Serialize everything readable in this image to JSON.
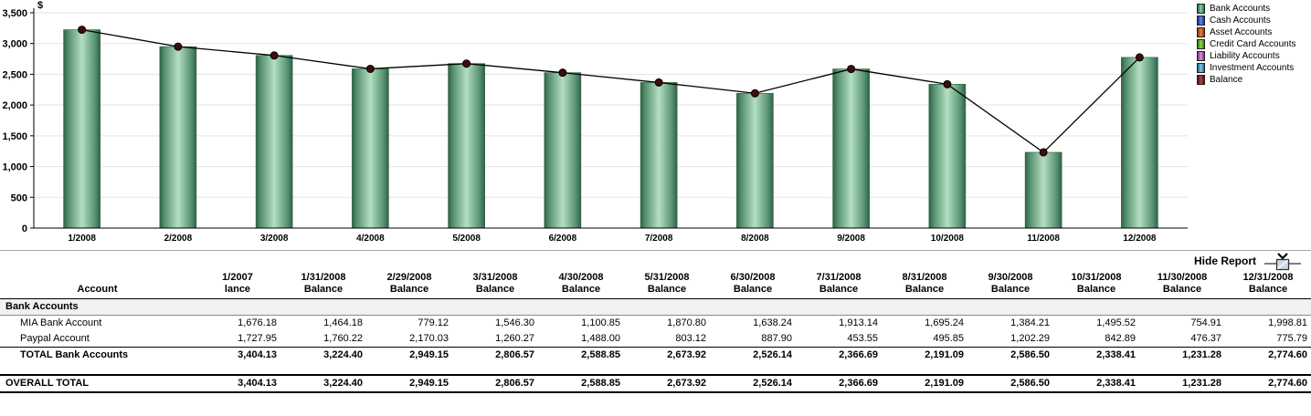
{
  "chart_data": {
    "type": "bar",
    "title": "$",
    "categories": [
      "1/2008",
      "2/2008",
      "3/2008",
      "4/2008",
      "5/2008",
      "6/2008",
      "7/2008",
      "8/2008",
      "9/2008",
      "10/2008",
      "11/2008",
      "12/2008"
    ],
    "series": [
      {
        "name": "Bank Accounts",
        "type": "bar",
        "values": [
          3224.4,
          2949.15,
          2806.57,
          2588.85,
          2673.92,
          2526.14,
          2366.69,
          2191.09,
          2586.5,
          2338.41,
          1231.28,
          2774.6
        ]
      },
      {
        "name": "Balance",
        "type": "line",
        "values": [
          3224.4,
          2949.15,
          2806.57,
          2588.85,
          2673.92,
          2526.14,
          2366.69,
          2191.09,
          2586.5,
          2338.41,
          1231.28,
          2774.6
        ]
      }
    ],
    "xlabel": "",
    "ylabel": "$",
    "ylim": [
      0,
      3500
    ],
    "ytick_interval": 500,
    "ytick_labels": [
      "0",
      "500",
      "1,000",
      "1,500",
      "2,000",
      "2,500",
      "3,000",
      "3,500"
    ],
    "grid": "horizontal",
    "gridline_color": "#e3e3e3",
    "bar_gradient": {
      "edge": "#2f6247",
      "mid": "#579370",
      "center": "#b4dfc2"
    },
    "line_color": "#000000",
    "dot_color": "#3f0d08",
    "legend_position": "top-right",
    "legend": [
      {
        "label": "Bank Accounts",
        "color": "#2e8b57",
        "dark": "#1e6b3c",
        "light": "#7fd4a0"
      },
      {
        "label": "Cash Accounts",
        "color": "#2a46c8",
        "dark": "#18288f",
        "light": "#6b86ee"
      },
      {
        "label": "Asset Accounts",
        "color": "#cc5511",
        "dark": "#8f3300",
        "light": "#f08040"
      },
      {
        "label": "Credit Card Accounts",
        "color": "#55bb11",
        "dark": "#2f7a00",
        "light": "#8fdd44"
      },
      {
        "label": "Liability Accounts",
        "color": "#bb55bb",
        "dark": "#7e2f7e",
        "light": "#dd8fdd"
      },
      {
        "label": "Investment Accounts",
        "color": "#4499cc",
        "dark": "#1f5e8c",
        "light": "#88c8e8"
      },
      {
        "label": "Balance",
        "color": "#7a1a15",
        "dark": "#4c0e0b",
        "light": "#a84a40"
      }
    ]
  },
  "report": {
    "hide_label": "Hide Report",
    "columns": [
      [
        "Account",
        ""
      ],
      [
        "1/2007",
        "lance"
      ],
      [
        "1/31/2008",
        "Balance"
      ],
      [
        "2/29/2008",
        "Balance"
      ],
      [
        "3/31/2008",
        "Balance"
      ],
      [
        "4/30/2008",
        "Balance"
      ],
      [
        "5/31/2008",
        "Balance"
      ],
      [
        "6/30/2008",
        "Balance"
      ],
      [
        "7/31/2008",
        "Balance"
      ],
      [
        "8/31/2008",
        "Balance"
      ],
      [
        "9/30/2008",
        "Balance"
      ],
      [
        "10/31/2008",
        "Balance"
      ],
      [
        "11/30/2008",
        "Balance"
      ],
      [
        "12/31/2008",
        "Balance"
      ]
    ],
    "sections": [
      {
        "group": "Bank Accounts",
        "rows": [
          {
            "account": "MIA Bank Account",
            "values": [
              "1,676.18",
              "1,464.18",
              "779.12",
              "1,546.30",
              "1,100.85",
              "1,870.80",
              "1,638.24",
              "1,913.14",
              "1,695.24",
              "1,384.21",
              "1,495.52",
              "754.91",
              "1,998.81"
            ]
          },
          {
            "account": "Paypal Account",
            "values": [
              "1,727.95",
              "1,760.22",
              "2,170.03",
              "1,260.27",
              "1,488.00",
              "803.12",
              "887.90",
              "453.55",
              "495.85",
              "1,202.29",
              "842.89",
              "476.37",
              "775.79"
            ]
          }
        ],
        "total": {
          "account": "TOTAL Bank Accounts",
          "values": [
            "3,404.13",
            "3,224.40",
            "2,949.15",
            "2,806.57",
            "2,588.85",
            "2,673.92",
            "2,526.14",
            "2,366.69",
            "2,191.09",
            "2,586.50",
            "2,338.41",
            "1,231.28",
            "2,774.60"
          ]
        }
      }
    ],
    "overall": {
      "account": "OVERALL TOTAL",
      "values": [
        "3,404.13",
        "3,224.40",
        "2,949.15",
        "2,806.57",
        "2,588.85",
        "2,673.92",
        "2,526.14",
        "2,366.69",
        "2,191.09",
        "2,586.50",
        "2,338.41",
        "1,231.28",
        "2,774.60"
      ]
    }
  }
}
